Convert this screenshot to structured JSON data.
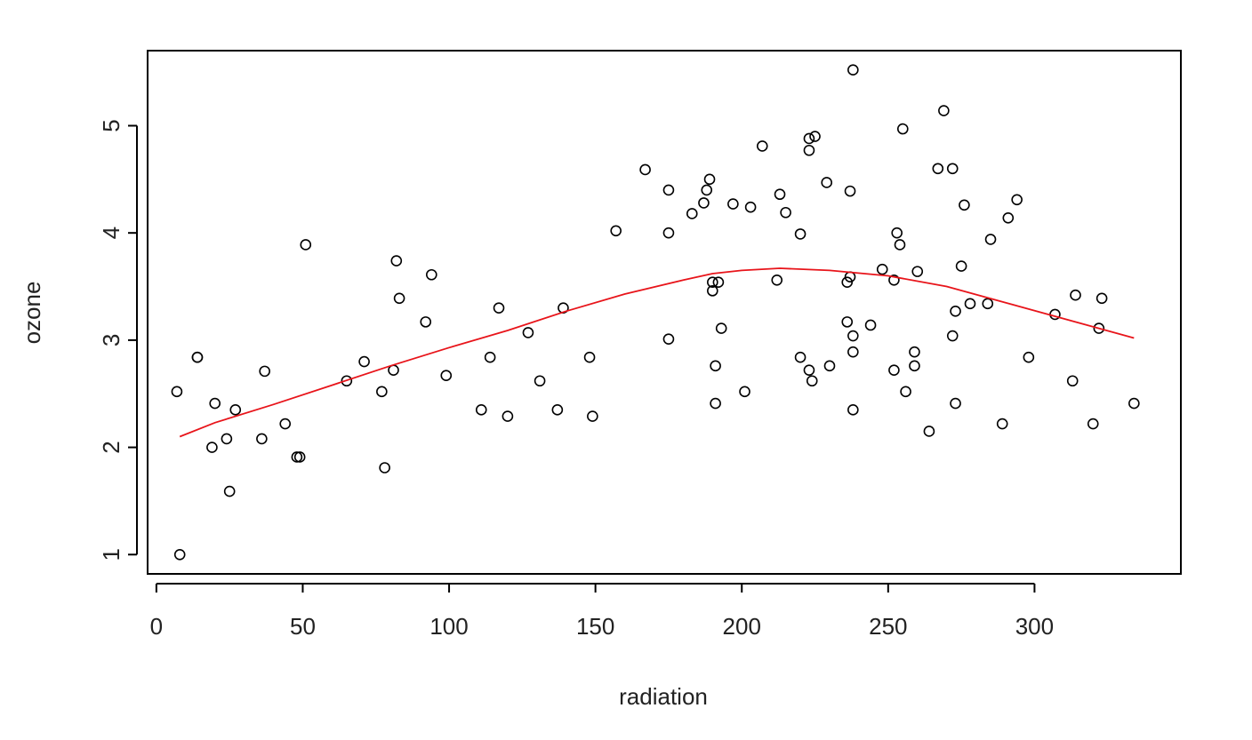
{
  "chart_data": {
    "type": "scatter",
    "xlabel": "radiation",
    "ylabel": "ozone",
    "xlim": [
      -3,
      350
    ],
    "ylim": [
      0.82,
      5.7
    ],
    "xticks": [
      0,
      50,
      100,
      150,
      200,
      250,
      300
    ],
    "yticks": [
      1,
      2,
      3,
      4,
      5
    ],
    "xtick_labels": [
      "0",
      "50",
      "100",
      "150",
      "200",
      "250",
      "300"
    ],
    "ytick_labels": [
      "1",
      "2",
      "3",
      "4",
      "5"
    ],
    "grid": false,
    "point_color": "#000000",
    "fit_color": "#e8141a",
    "points": [
      [
        7,
        2.52
      ],
      [
        8,
        1.0
      ],
      [
        14,
        2.84
      ],
      [
        14,
        2.84
      ],
      [
        19,
        2.0
      ],
      [
        20,
        2.41
      ],
      [
        24,
        2.08
      ],
      [
        25,
        1.59
      ],
      [
        27,
        2.35
      ],
      [
        36,
        2.08
      ],
      [
        37,
        2.71
      ],
      [
        44,
        2.22
      ],
      [
        48,
        1.91
      ],
      [
        49,
        1.91
      ],
      [
        51,
        3.89
      ],
      [
        65,
        2.62
      ],
      [
        71,
        2.8
      ],
      [
        77,
        2.52
      ],
      [
        78,
        1.81
      ],
      [
        81,
        2.72
      ],
      [
        82,
        3.74
      ],
      [
        83,
        3.39
      ],
      [
        92,
        3.17
      ],
      [
        94,
        3.61
      ],
      [
        99,
        2.67
      ],
      [
        111,
        2.35
      ],
      [
        114,
        2.84
      ],
      [
        117,
        3.3
      ],
      [
        120,
        2.29
      ],
      [
        127,
        3.07
      ],
      [
        131,
        2.62
      ],
      [
        137,
        2.35
      ],
      [
        139,
        3.3
      ],
      [
        148,
        2.84
      ],
      [
        149,
        2.29
      ],
      [
        157,
        4.02
      ],
      [
        167,
        4.59
      ],
      [
        175,
        4.4
      ],
      [
        175,
        4.0
      ],
      [
        175,
        3.01
      ],
      [
        183,
        4.18
      ],
      [
        187,
        4.28
      ],
      [
        188,
        4.4
      ],
      [
        189,
        4.5
      ],
      [
        190,
        3.54
      ],
      [
        190,
        3.46
      ],
      [
        191,
        2.76
      ],
      [
        191,
        2.41
      ],
      [
        192,
        3.54
      ],
      [
        193,
        3.11
      ],
      [
        197,
        4.27
      ],
      [
        201,
        2.52
      ],
      [
        203,
        4.24
      ],
      [
        207,
        4.81
      ],
      [
        212,
        3.56
      ],
      [
        213,
        4.36
      ],
      [
        215,
        4.19
      ],
      [
        220,
        3.99
      ],
      [
        220,
        2.84
      ],
      [
        223,
        4.88
      ],
      [
        223,
        4.77
      ],
      [
        223,
        2.72
      ],
      [
        224,
        2.62
      ],
      [
        225,
        4.9
      ],
      [
        229,
        4.47
      ],
      [
        230,
        2.76
      ],
      [
        236,
        3.17
      ],
      [
        236,
        3.54
      ],
      [
        237,
        4.39
      ],
      [
        237,
        3.59
      ],
      [
        238,
        5.52
      ],
      [
        238,
        3.04
      ],
      [
        238,
        2.89
      ],
      [
        238,
        2.35
      ],
      [
        244,
        3.14
      ],
      [
        248,
        3.66
      ],
      [
        252,
        2.72
      ],
      [
        252,
        3.56
      ],
      [
        253,
        4.0
      ],
      [
        254,
        3.89
      ],
      [
        255,
        4.97
      ],
      [
        256,
        2.52
      ],
      [
        259,
        2.89
      ],
      [
        259,
        2.76
      ],
      [
        260,
        3.64
      ],
      [
        264,
        2.15
      ],
      [
        267,
        4.6
      ],
      [
        269,
        5.14
      ],
      [
        272,
        4.6
      ],
      [
        272,
        3.04
      ],
      [
        273,
        3.27
      ],
      [
        273,
        2.41
      ],
      [
        275,
        3.69
      ],
      [
        276,
        4.26
      ],
      [
        278,
        3.34
      ],
      [
        284,
        3.34
      ],
      [
        285,
        3.94
      ],
      [
        289,
        2.22
      ],
      [
        291,
        4.14
      ],
      [
        294,
        4.31
      ],
      [
        298,
        2.84
      ],
      [
        307,
        3.24
      ],
      [
        313,
        2.62
      ],
      [
        314,
        3.42
      ],
      [
        320,
        2.22
      ],
      [
        322,
        3.11
      ],
      [
        323,
        3.39
      ],
      [
        334,
        2.41
      ]
    ],
    "fit_curve": [
      [
        8,
        2.1
      ],
      [
        20,
        2.23
      ],
      [
        40,
        2.4
      ],
      [
        60,
        2.58
      ],
      [
        80,
        2.76
      ],
      [
        100,
        2.93
      ],
      [
        120,
        3.09
      ],
      [
        140,
        3.27
      ],
      [
        160,
        3.43
      ],
      [
        180,
        3.56
      ],
      [
        190,
        3.62
      ],
      [
        200,
        3.65
      ],
      [
        213,
        3.67
      ],
      [
        230,
        3.65
      ],
      [
        250,
        3.6
      ],
      [
        270,
        3.5
      ],
      [
        290,
        3.35
      ],
      [
        310,
        3.2
      ],
      [
        334,
        3.02
      ]
    ]
  }
}
